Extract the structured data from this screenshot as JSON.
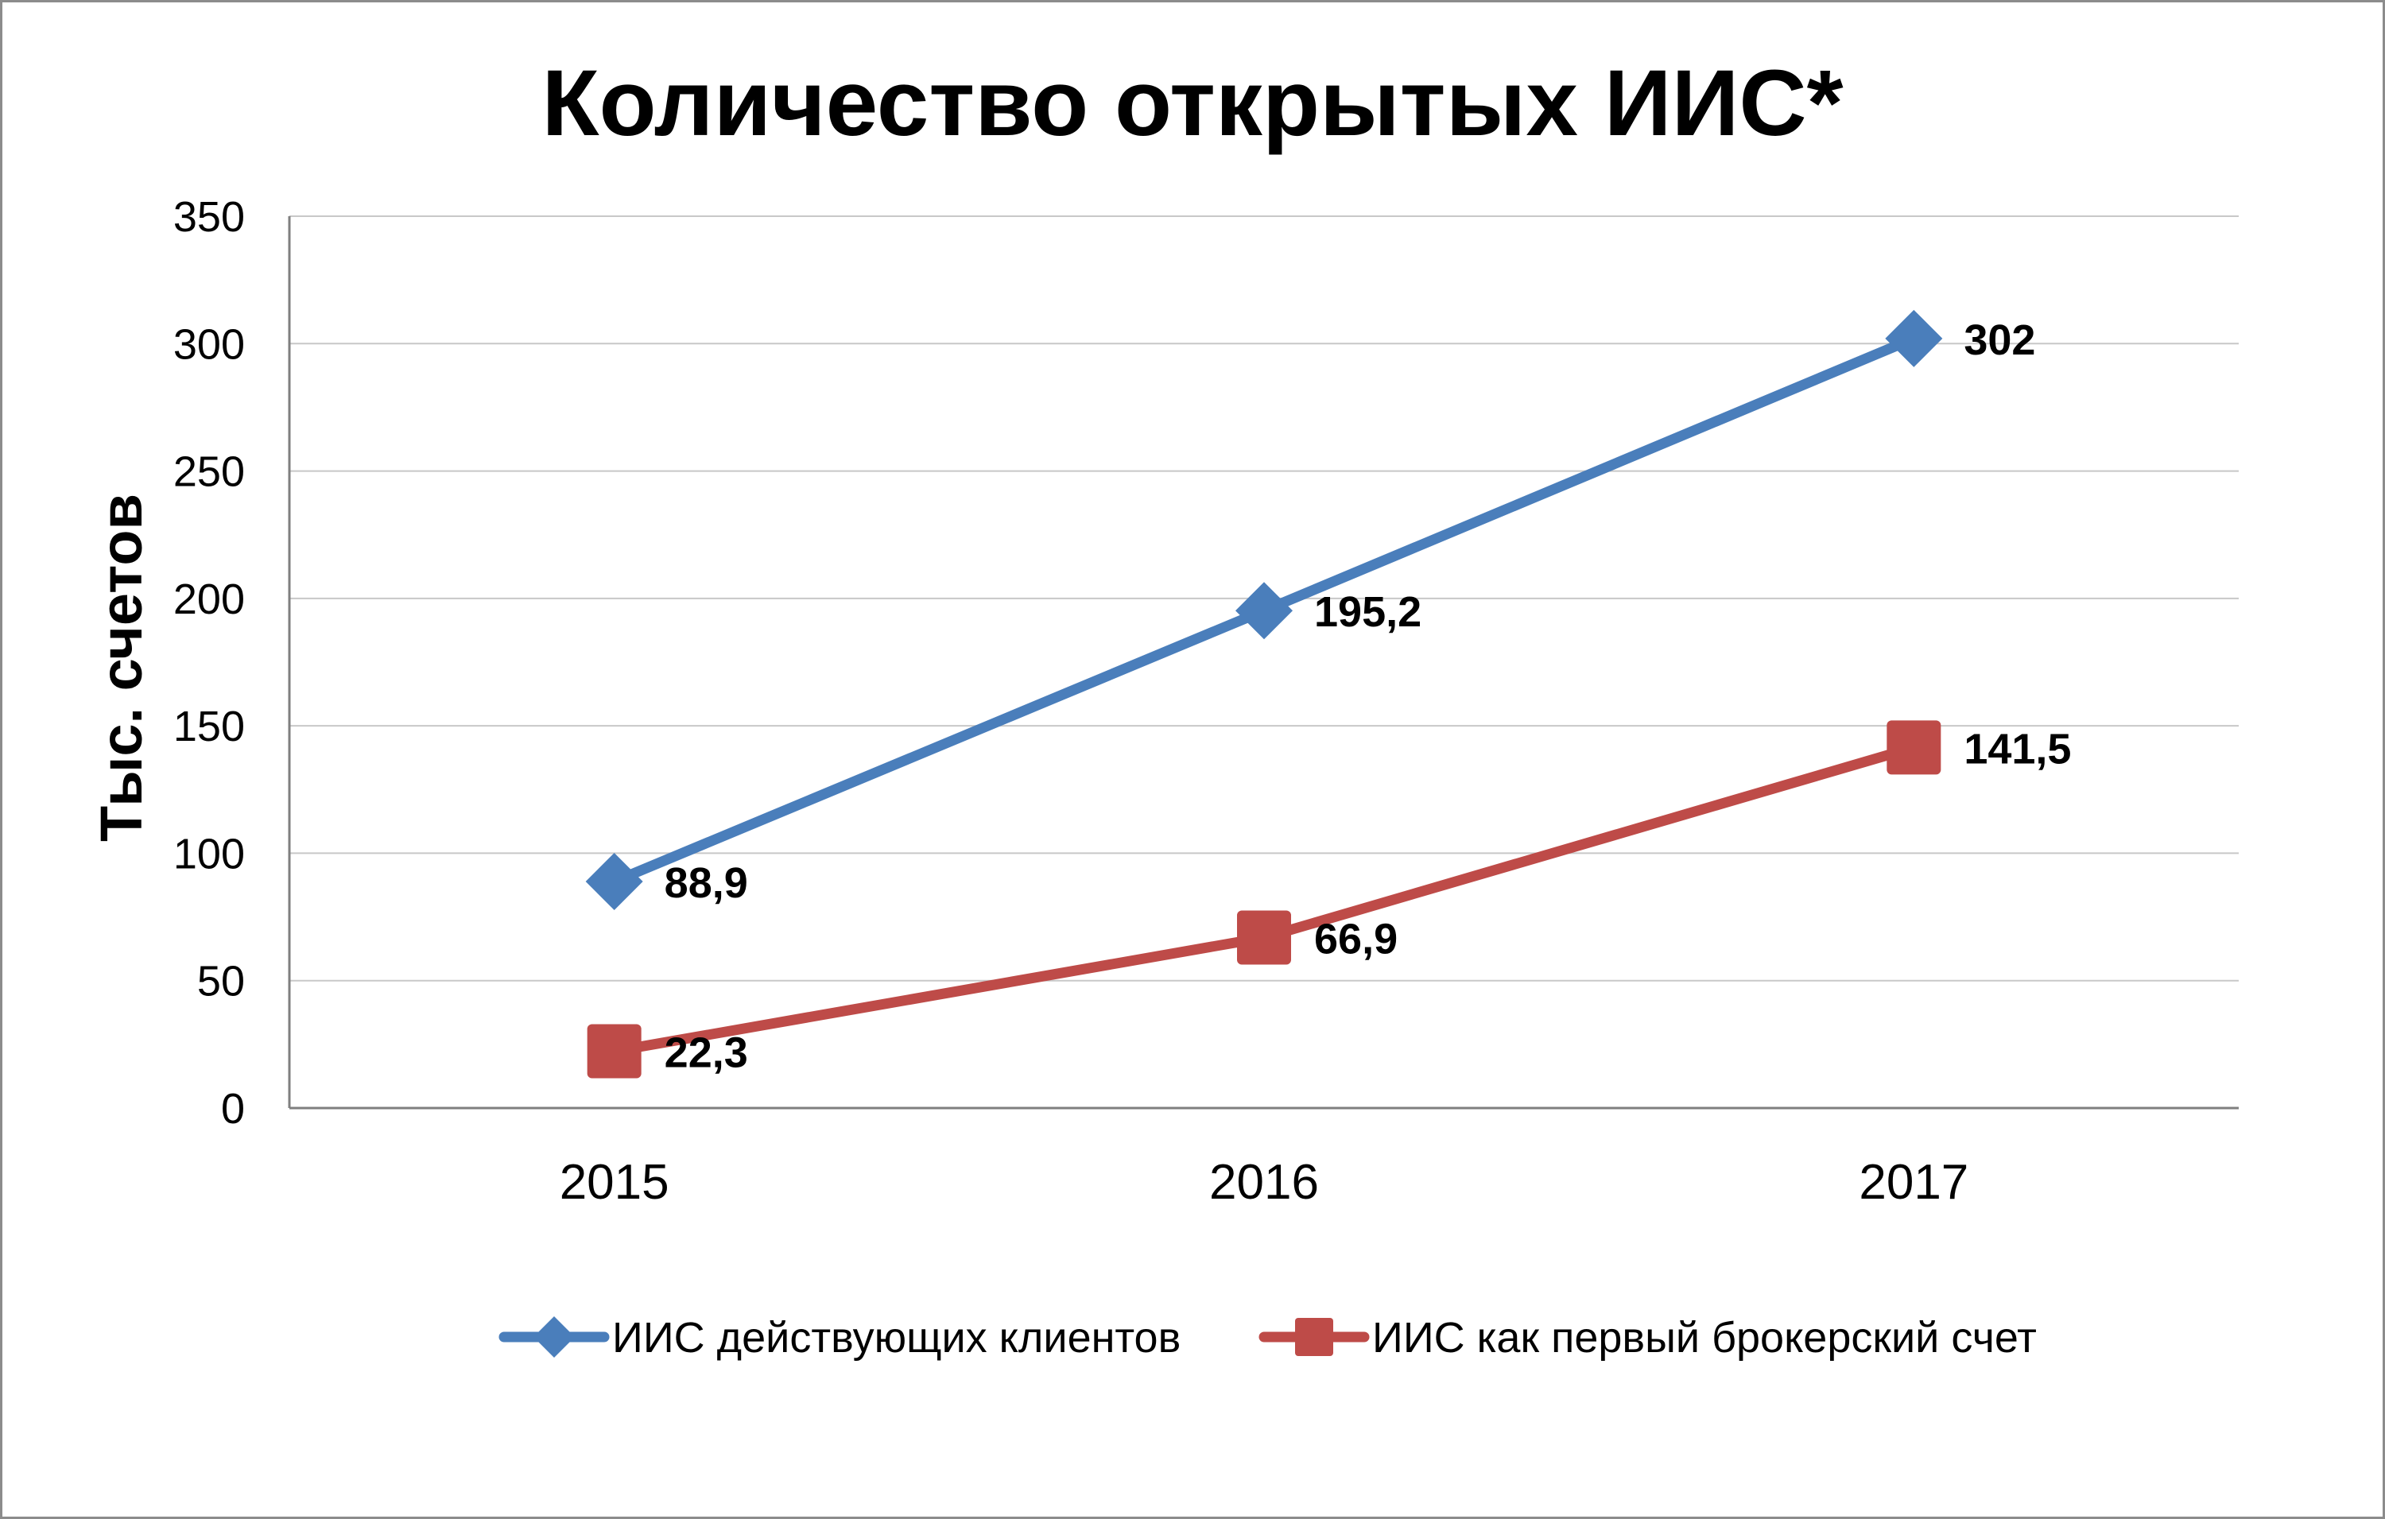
{
  "chart_data": {
    "type": "line",
    "title": "Количество открытых ИИС*",
    "ylabel": "Тыс. счетов",
    "xlabel": "",
    "categories": [
      "2015",
      "2016",
      "2017"
    ],
    "ylim": [
      0,
      350
    ],
    "yticks": [
      0,
      50,
      100,
      150,
      200,
      250,
      300,
      350
    ],
    "grid": true,
    "legend_position": "bottom",
    "series": [
      {
        "name": "ИИС действующих клиентов",
        "values": [
          88.9,
          195.2,
          302
        ],
        "labels": [
          "88,9",
          "195,2",
          "302"
        ],
        "color": "#4a7ebb",
        "marker": "diamond"
      },
      {
        "name": "ИИС как первый брокерский счет",
        "values": [
          22.3,
          66.9,
          141.5
        ],
        "labels": [
          "22,3",
          "66,9",
          "141,5"
        ],
        "color": "#be4b48",
        "marker": "square"
      }
    ]
  }
}
